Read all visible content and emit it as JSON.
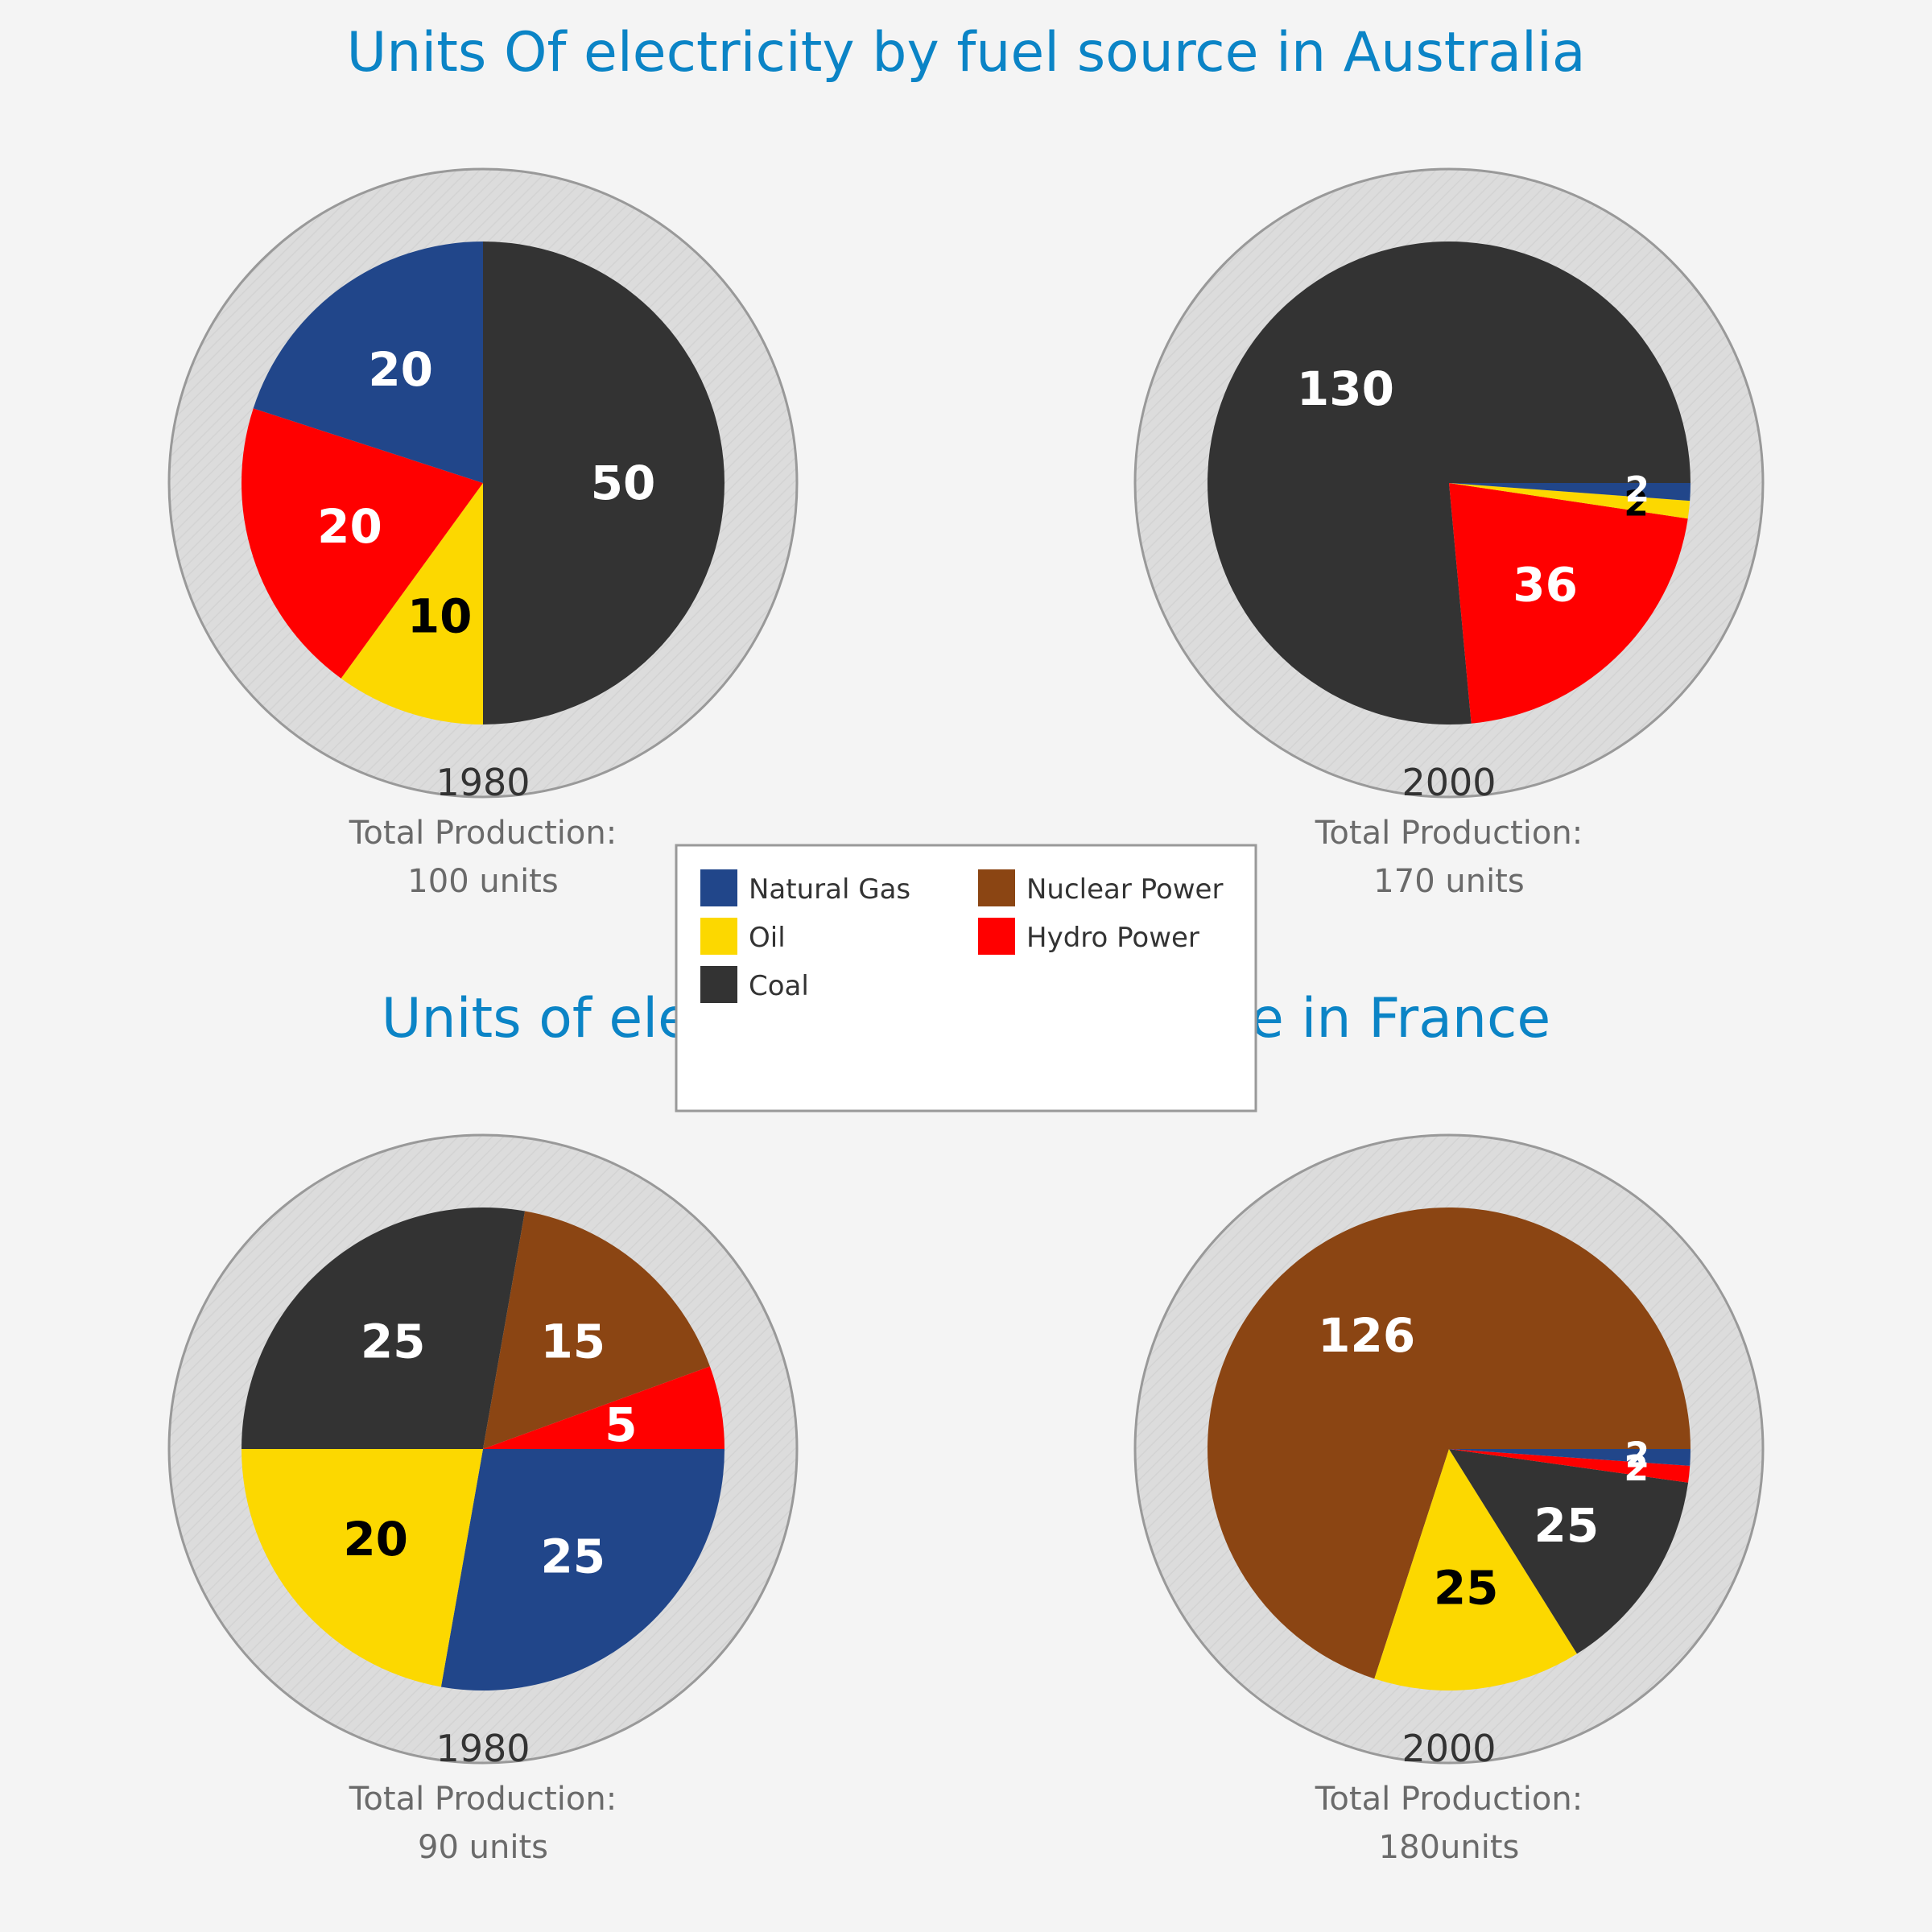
{
  "titles": {
    "australia": "Units Of electricity by fuel source in Australia",
    "france": "Units of electricity by fuel source in France"
  },
  "colors": {
    "Natural Gas": "#21468a",
    "Oil": "#fcd800",
    "Coal": "#333333",
    "Nuclear Power": "#8b4513",
    "Hydro Power": "#ff0000"
  },
  "legend": [
    "Natural Gas",
    "Nuclear Power",
    "Oil",
    "Hydro Power",
    "Coal"
  ],
  "chart_data": [
    {
      "type": "pie",
      "country": "Australia",
      "year": "1980",
      "total_label": [
        "Total Production:",
        "100 units"
      ],
      "slices": [
        {
          "name": "Coal",
          "value": 50,
          "label": "50"
        },
        {
          "name": "Oil",
          "value": 10,
          "label": "10"
        },
        {
          "name": "Hydro Power",
          "value": 20,
          "label": "20"
        },
        {
          "name": "Natural Gas",
          "value": 20,
          "label": "20"
        }
      ]
    },
    {
      "type": "pie",
      "country": "Australia",
      "year": "2000",
      "total_label": [
        "Total Production:",
        "170 units"
      ],
      "slices": [
        {
          "name": "Coal",
          "value": 130,
          "label": "130"
        },
        {
          "name": "Hydro Power",
          "value": 36,
          "label": "36"
        },
        {
          "name": "Oil",
          "value": 2,
          "label": "2"
        },
        {
          "name": "Natural Gas",
          "value": 2,
          "label": "2"
        }
      ]
    },
    {
      "type": "pie",
      "country": "France",
      "year": "1980",
      "total_label": [
        "Total Production:",
        "90 units"
      ],
      "slices": [
        {
          "name": "Natural Gas",
          "value": 25,
          "label": "25"
        },
        {
          "name": "Oil",
          "value": 20,
          "label": "20"
        },
        {
          "name": "Coal",
          "value": 25,
          "label": "25"
        },
        {
          "name": "Nuclear Power",
          "value": 15,
          "label": "15"
        },
        {
          "name": "Hydro Power",
          "value": 5,
          "label": "5"
        }
      ]
    },
    {
      "type": "pie",
      "country": "France",
      "year": "2000",
      "total_label": [
        "Total Production:",
        "180units"
      ],
      "slices": [
        {
          "name": "Nuclear Power",
          "value": 126,
          "label": "126"
        },
        {
          "name": "Oil",
          "value": 25,
          "label": "25"
        },
        {
          "name": "Coal",
          "value": 25,
          "label": "25"
        },
        {
          "name": "Hydro Power",
          "value": 2,
          "label": "2"
        },
        {
          "name": "Natural Gas",
          "value": 2,
          "label": "2"
        }
      ]
    }
  ]
}
